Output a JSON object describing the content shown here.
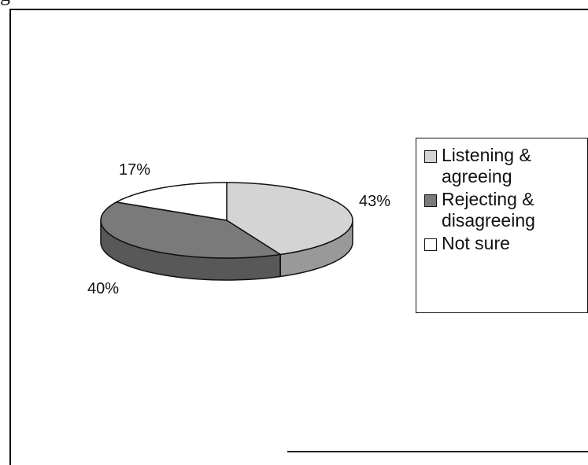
{
  "header_fragment": "g",
  "chart_data": {
    "type": "pie",
    "style": "3d",
    "title": "",
    "slices": [
      {
        "label": "Listening & agreeing",
        "legend_line1": "Listening &",
        "legend_line2": "agreeing",
        "value": 43,
        "display": "43%",
        "color": "#d4d4d4"
      },
      {
        "label": "Rejecting & disagreeing",
        "legend_line1": "Rejecting &",
        "legend_line2": "disagreeing",
        "value": 40,
        "display": "40%",
        "color": "#7a7a7a"
      },
      {
        "label": "Not sure",
        "legend_line1": "Not sure",
        "legend_line2": "",
        "value": 17,
        "display": "17%",
        "color": "#ffffff"
      }
    ],
    "legend_position": "right"
  }
}
